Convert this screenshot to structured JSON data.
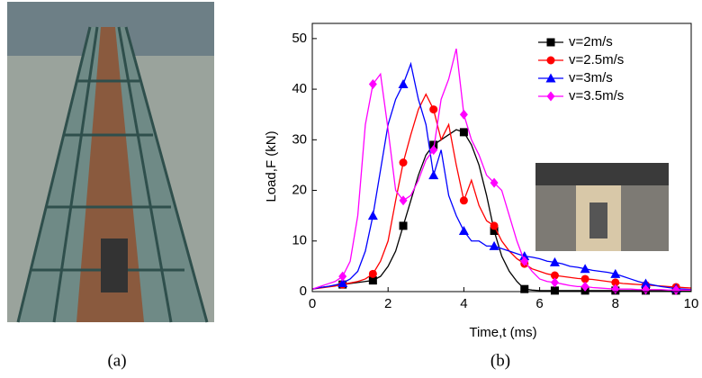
{
  "captions": {
    "a": "(a)",
    "b": "(b)"
  },
  "chart_data": {
    "type": "line",
    "x_label": "Time,t (ms)",
    "y_label": "Load,F (kN)",
    "x": [
      0,
      0.2,
      0.4,
      0.6,
      0.8,
      1,
      1.2,
      1.4,
      1.6,
      1.8,
      2,
      2.2,
      2.4,
      2.6,
      2.8,
      3,
      3.2,
      3.4,
      3.6,
      3.8,
      4,
      4.2,
      4.4,
      4.6,
      4.8,
      5,
      5.2,
      5.4,
      5.6,
      5.8,
      6,
      6.2,
      6.4,
      6.6,
      6.8,
      7,
      7.2,
      7.4,
      7.6,
      7.8,
      8,
      8.2,
      8.4,
      8.6,
      8.8,
      9,
      9.2,
      9.4,
      9.6,
      9.8,
      10
    ],
    "series": [
      {
        "name": "v=2m/s",
        "color": "#000000",
        "marker": "square",
        "values": [
          0.5,
          0.8,
          1,
          1.2,
          1.4,
          1.6,
          1.8,
          2,
          2.2,
          3,
          5,
          8,
          13,
          18,
          23,
          27,
          29,
          30,
          31,
          32,
          31.5,
          29,
          25,
          19,
          12,
          7,
          4,
          2,
          0.5,
          0.3,
          0.2,
          0.2,
          0.2,
          0.2,
          0.2,
          0.2,
          0.2,
          0.2,
          0.2,
          0.2,
          0.2,
          0.2,
          0.2,
          0.2,
          0.2,
          0.2,
          0.2,
          0.2,
          0.2,
          0.2,
          0.2
        ]
      },
      {
        "name": "v=2.5m/s",
        "color": "#ff0000",
        "marker": "circle",
        "values": [
          0.5,
          0.7,
          0.9,
          1.1,
          1.4,
          1.7,
          2,
          2.5,
          3.5,
          6,
          10,
          18,
          25.5,
          31,
          36,
          39,
          36,
          30,
          33,
          25,
          18,
          22,
          17,
          14,
          13,
          10,
          8,
          6.5,
          5.5,
          4.5,
          4,
          3.5,
          3.2,
          3,
          2.8,
          2.6,
          2.5,
          2.4,
          2.2,
          2,
          1.8,
          1.6,
          1.5,
          1.4,
          1.3,
          1.2,
          1.1,
          1,
          0.9,
          0.8,
          0.7
        ]
      },
      {
        "name": "v=3m/s",
        "color": "#0000ff",
        "marker": "triangle",
        "values": [
          0.5,
          0.8,
          1,
          1.3,
          1.7,
          2.5,
          4,
          8,
          15,
          24,
          33,
          38,
          41,
          45,
          38,
          33,
          23,
          28,
          19,
          15,
          12,
          10,
          10,
          9,
          9,
          8.5,
          8,
          7.5,
          7,
          6.8,
          6.5,
          6,
          5.8,
          5.5,
          5,
          4.8,
          4.5,
          4.2,
          4,
          3.8,
          3.5,
          3,
          2.5,
          2,
          1.6,
          1.3,
          1,
          0.8,
          0.6,
          0.5,
          0.4
        ]
      },
      {
        "name": "v=3.5m/s",
        "color": "#ff00ff",
        "marker": "diamond",
        "values": [
          0.5,
          1,
          1.5,
          2,
          3,
          6,
          15,
          33,
          41,
          43,
          32,
          20,
          18,
          19,
          22,
          26,
          28,
          38,
          42,
          48,
          35,
          30,
          27,
          23,
          21.5,
          20,
          15,
          10,
          6,
          4,
          2.5,
          2,
          1.8,
          1.5,
          1.2,
          1,
          1,
          0.8,
          0.7,
          0.6,
          0.5,
          0.5,
          0.5,
          0.4,
          0.4,
          0.4,
          0.4,
          0.3,
          0.3,
          0.3,
          0.3
        ]
      }
    ],
    "xlim": [
      0,
      10
    ],
    "xticks": [
      0,
      2,
      4,
      6,
      8,
      10
    ],
    "ylim": [
      0,
      53
    ],
    "yticks": [
      0,
      10,
      20,
      30,
      40,
      50
    ],
    "legend": "upper right"
  }
}
